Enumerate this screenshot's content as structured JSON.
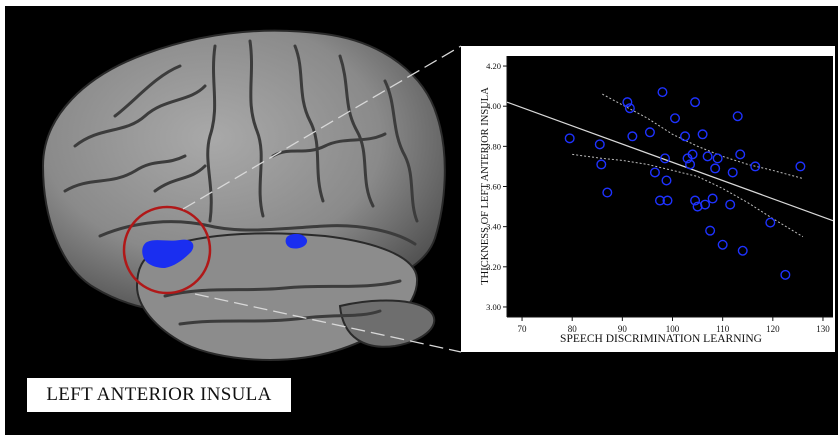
{
  "figure": {
    "region_label": "LEFT ANTERIOR INSULA",
    "highlight_color": "#1a2ef0",
    "circle_color": "#b01818"
  },
  "chart_data": {
    "type": "scatter",
    "title": "",
    "xlabel": "SPEECH DISCRIMINATION LEARNING",
    "ylabel": "THICKNESS OF LEFT ANTERIOR INSULA",
    "xlim": [
      67,
      132
    ],
    "ylim": [
      2.95,
      4.25
    ],
    "xticks": [
      70,
      80,
      90,
      100,
      110,
      120,
      130
    ],
    "yticks": [
      3.0,
      3.2,
      3.4,
      3.6,
      3.8,
      4.0,
      4.2
    ],
    "ytick_labels": [
      "3.00",
      "3.20",
      "3.40",
      "3.60",
      "3.80",
      "4.00",
      "4.20"
    ],
    "grid": false,
    "marker_color": "#1e32ff",
    "points": [
      {
        "x": 79.5,
        "y": 3.84
      },
      {
        "x": 85.5,
        "y": 3.81
      },
      {
        "x": 85.8,
        "y": 3.71
      },
      {
        "x": 87.0,
        "y": 3.57
      },
      {
        "x": 91.0,
        "y": 4.02
      },
      {
        "x": 91.5,
        "y": 3.99
      },
      {
        "x": 92.0,
        "y": 3.85
      },
      {
        "x": 95.5,
        "y": 3.87
      },
      {
        "x": 96.5,
        "y": 3.67
      },
      {
        "x": 97.5,
        "y": 3.53
      },
      {
        "x": 98.0,
        "y": 4.07
      },
      {
        "x": 98.5,
        "y": 3.74
      },
      {
        "x": 98.8,
        "y": 3.63
      },
      {
        "x": 99.0,
        "y": 3.53
      },
      {
        "x": 100.5,
        "y": 3.94
      },
      {
        "x": 102.5,
        "y": 3.85
      },
      {
        "x": 103.0,
        "y": 3.74
      },
      {
        "x": 103.5,
        "y": 3.71
      },
      {
        "x": 104.0,
        "y": 3.76
      },
      {
        "x": 104.5,
        "y": 4.02
      },
      {
        "x": 104.5,
        "y": 3.53
      },
      {
        "x": 105.0,
        "y": 3.5
      },
      {
        "x": 106.0,
        "y": 3.86
      },
      {
        "x": 106.5,
        "y": 3.51
      },
      {
        "x": 107.0,
        "y": 3.75
      },
      {
        "x": 107.5,
        "y": 3.38
      },
      {
        "x": 108.0,
        "y": 3.54
      },
      {
        "x": 108.5,
        "y": 3.69
      },
      {
        "x": 109.0,
        "y": 3.74
      },
      {
        "x": 110.0,
        "y": 3.31
      },
      {
        "x": 111.5,
        "y": 3.51
      },
      {
        "x": 112.0,
        "y": 3.67
      },
      {
        "x": 113.0,
        "y": 3.95
      },
      {
        "x": 113.5,
        "y": 3.76
      },
      {
        "x": 114.0,
        "y": 3.28
      },
      {
        "x": 116.5,
        "y": 3.7
      },
      {
        "x": 119.5,
        "y": 3.42
      },
      {
        "x": 122.5,
        "y": 3.16
      },
      {
        "x": 125.5,
        "y": 3.7
      }
    ],
    "fit_line": {
      "x": [
        67,
        132
      ],
      "y": [
        4.02,
        3.43
      ]
    },
    "ci_upper": {
      "x": [
        86,
        89,
        95,
        100,
        105,
        110,
        115,
        120,
        126
      ],
      "y": [
        4.06,
        4.02,
        3.94,
        3.86,
        3.8,
        3.75,
        3.71,
        3.68,
        3.64
      ]
    },
    "ci_lower": {
      "x": [
        80,
        86,
        90,
        95,
        100,
        105,
        110,
        115,
        120,
        126
      ],
      "y": [
        3.76,
        3.74,
        3.73,
        3.71,
        3.68,
        3.65,
        3.59,
        3.52,
        3.44,
        3.35
      ]
    }
  }
}
